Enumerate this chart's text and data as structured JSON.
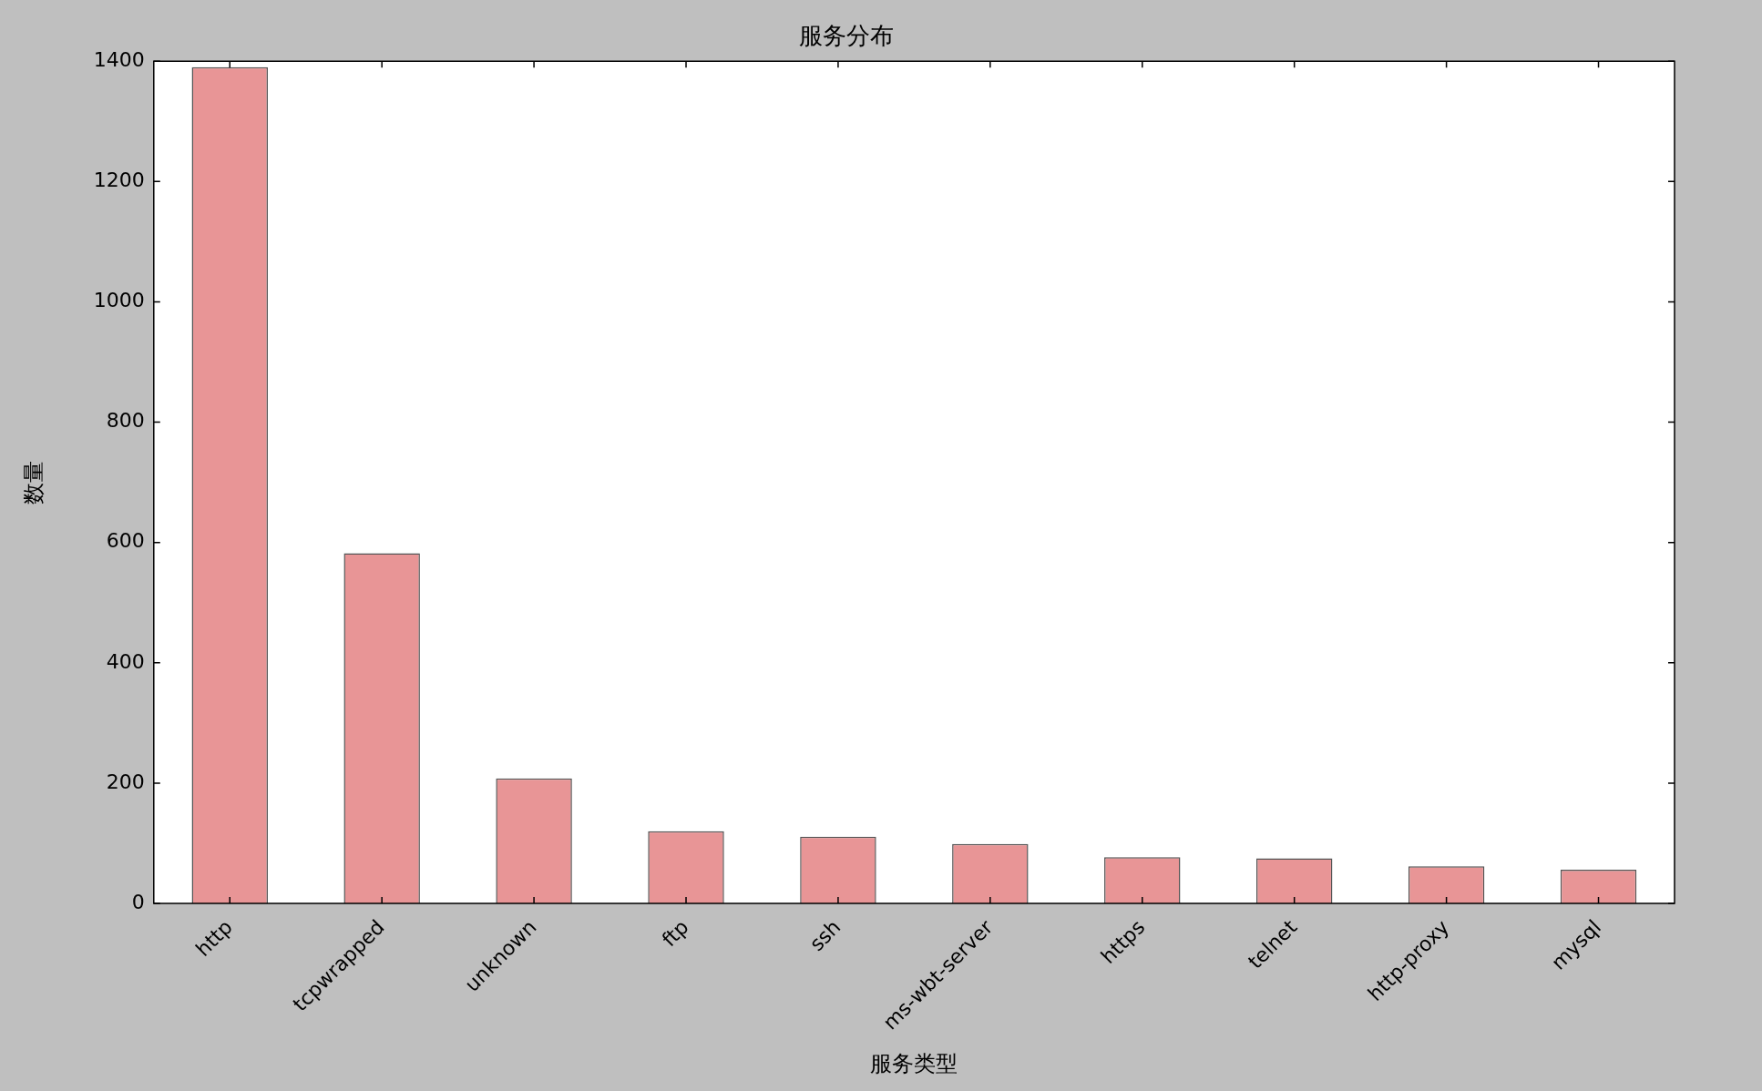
{
  "chart_data": {
    "type": "bar",
    "title": "服务分布",
    "xlabel": "服务类型",
    "ylabel": "数量",
    "categories": [
      "http",
      "tcpwrapped",
      "unknown",
      "ftp",
      "ssh",
      "ms-wbt-server",
      "https",
      "telnet",
      "http-proxy",
      "mysql"
    ],
    "values": [
      1390,
      582,
      208,
      120,
      111,
      99,
      77,
      75,
      62,
      56
    ],
    "color": "#e89596",
    "ylim": [
      0,
      1400
    ],
    "yticks": [
      0,
      200,
      400,
      600,
      800,
      1000,
      1200,
      1400
    ],
    "grid": false,
    "legend": false
  }
}
